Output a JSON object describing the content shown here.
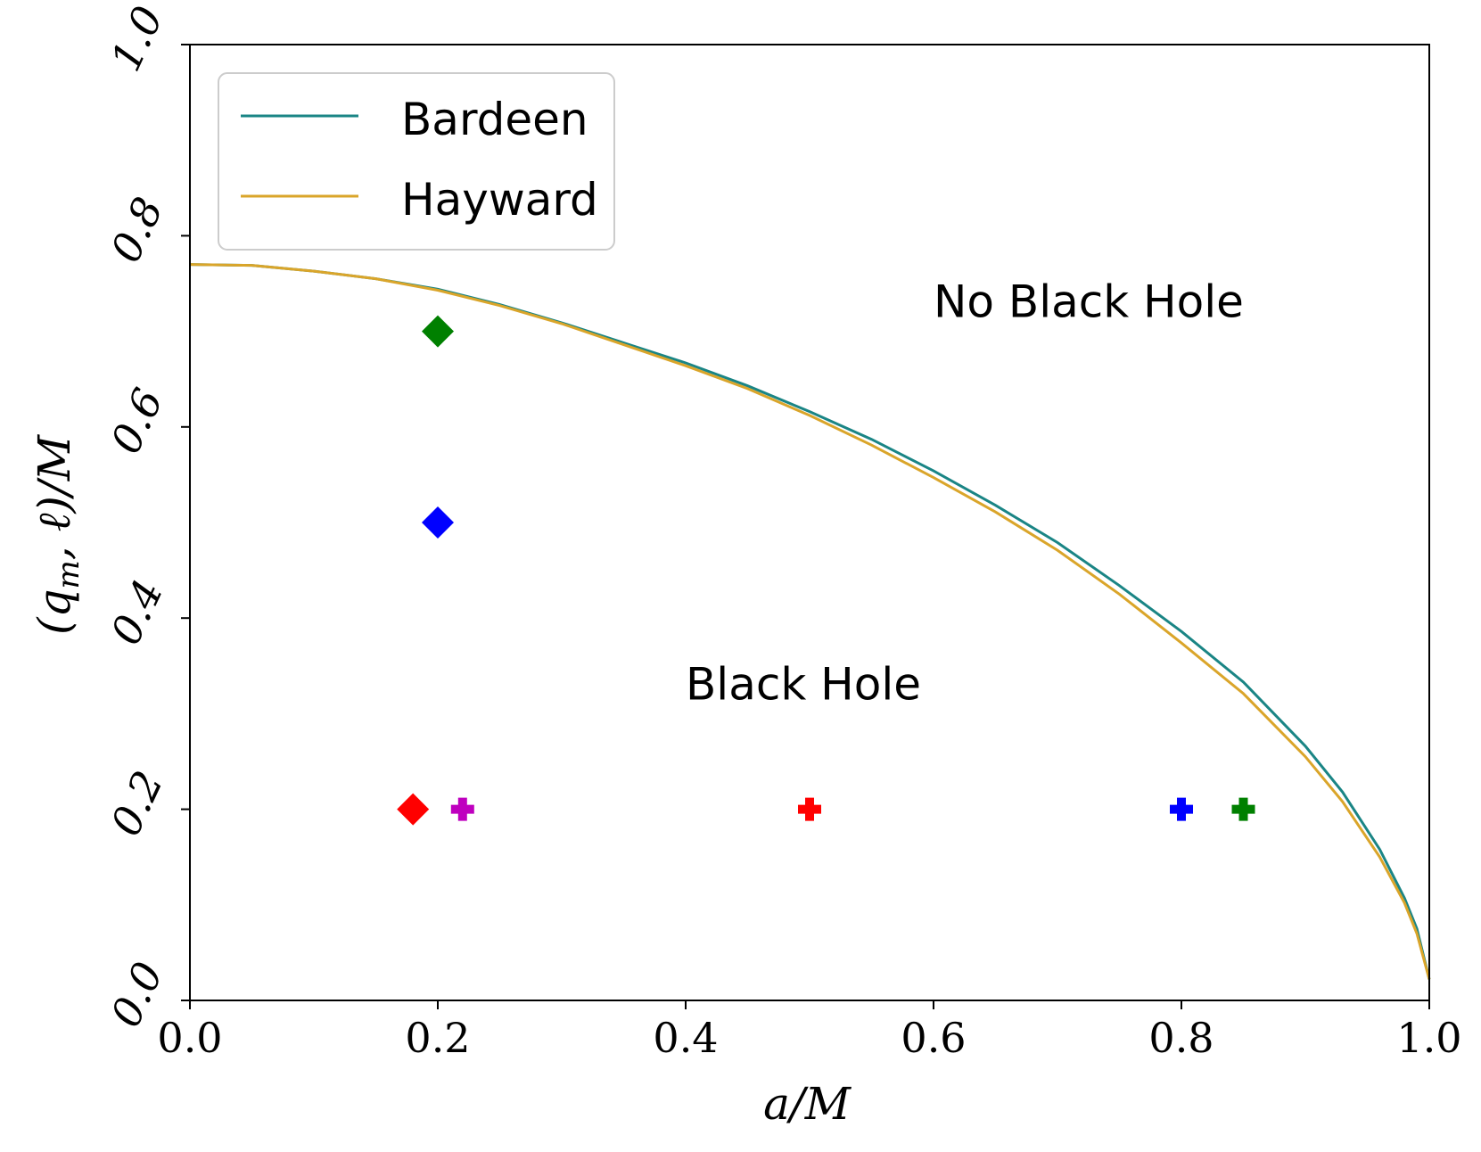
{
  "chart_data": {
    "type": "line",
    "xlabel": "a/M",
    "ylabel": "(q_m, ℓ)/M",
    "ylabel_parts": {
      "open": "(",
      "q": "q",
      "sub": "m",
      "sep": ", ",
      "ell": "ℓ",
      "close": ")/M"
    },
    "xlim": [
      0.0,
      1.0
    ],
    "ylim": [
      0.0,
      1.0
    ],
    "xticks": [
      0.0,
      0.2,
      0.4,
      0.6,
      0.8,
      1.0
    ],
    "yticks": [
      0.0,
      0.2,
      0.4,
      0.6,
      0.8,
      1.0
    ],
    "xtick_labels": [
      "0.0",
      "0.2",
      "0.4",
      "0.6",
      "0.8",
      "1.0"
    ],
    "ytick_labels": [
      "0.0",
      "0.2",
      "0.4",
      "0.6",
      "0.8",
      "1.0"
    ],
    "grid": false,
    "legend_position": "top-left",
    "series": [
      {
        "name": "Bardeen",
        "color": "#1a8585",
        "x": [
          0.0,
          0.05,
          0.1,
          0.15,
          0.2,
          0.25,
          0.3,
          0.35,
          0.4,
          0.45,
          0.5,
          0.55,
          0.6,
          0.65,
          0.7,
          0.75,
          0.8,
          0.85,
          0.9,
          0.93,
          0.96,
          0.98,
          0.99,
          1.0
        ],
        "y": [
          0.77,
          0.769,
          0.763,
          0.755,
          0.744,
          0.728,
          0.709,
          0.688,
          0.667,
          0.643,
          0.616,
          0.587,
          0.554,
          0.518,
          0.479,
          0.434,
          0.386,
          0.333,
          0.266,
          0.218,
          0.158,
          0.107,
          0.075,
          0.022
        ]
      },
      {
        "name": "Hayward",
        "color": "#daa52a",
        "x": [
          0.0,
          0.05,
          0.1,
          0.15,
          0.2,
          0.25,
          0.3,
          0.35,
          0.4,
          0.45,
          0.5,
          0.55,
          0.6,
          0.65,
          0.7,
          0.75,
          0.8,
          0.85,
          0.9,
          0.93,
          0.96,
          0.98,
          0.99,
          1.0
        ],
        "y": [
          0.77,
          0.769,
          0.763,
          0.755,
          0.743,
          0.727,
          0.708,
          0.686,
          0.664,
          0.64,
          0.612,
          0.581,
          0.547,
          0.511,
          0.471,
          0.425,
          0.374,
          0.321,
          0.255,
          0.208,
          0.15,
          0.102,
          0.07,
          0.022
        ]
      }
    ],
    "markers": [
      {
        "shape": "diamond",
        "color": "#008000",
        "x": 0.2,
        "y": 0.7
      },
      {
        "shape": "diamond",
        "color": "#0000ff",
        "x": 0.2,
        "y": 0.5
      },
      {
        "shape": "diamond",
        "color": "#ff0000",
        "x": 0.18,
        "y": 0.2
      },
      {
        "shape": "plus",
        "color": "#bf00bf",
        "x": 0.22,
        "y": 0.2
      },
      {
        "shape": "plus",
        "color": "#ff0000",
        "x": 0.5,
        "y": 0.2
      },
      {
        "shape": "plus",
        "color": "#0000ff",
        "x": 0.8,
        "y": 0.2
      },
      {
        "shape": "plus",
        "color": "#008000",
        "x": 0.85,
        "y": 0.2
      }
    ],
    "annotations": [
      {
        "text": "No Black Hole",
        "x": 0.6,
        "y": 0.715
      },
      {
        "text": "Black Hole",
        "x": 0.4,
        "y": 0.315
      }
    ]
  }
}
